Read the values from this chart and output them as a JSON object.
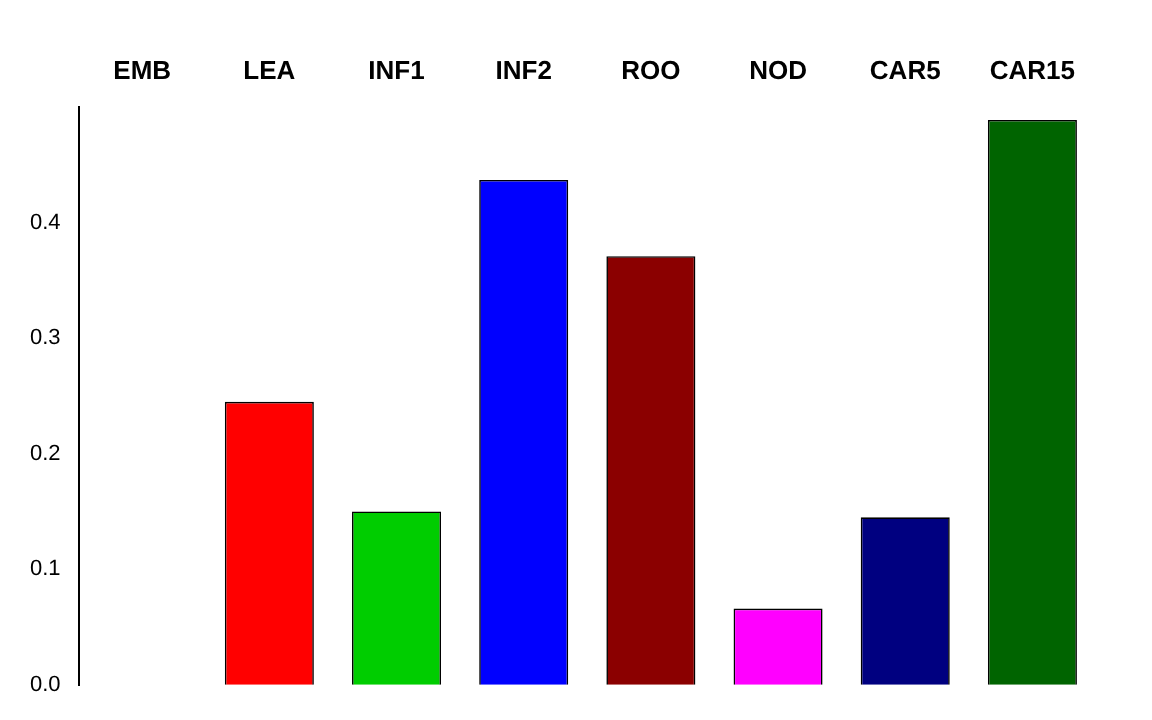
{
  "chart_data": {
    "type": "bar",
    "categories": [
      "EMB",
      "LEA",
      "INF1",
      "INF2",
      "ROO",
      "NOD",
      "CAR5",
      "CAR15"
    ],
    "values": [
      0,
      0.245,
      0.15,
      0.437,
      0.371,
      0.066,
      0.145,
      0.489
    ],
    "colors": [
      "#000000",
      "#ff0000",
      "#00cd00",
      "#0000ff",
      "#8b0000",
      "#ff00ff",
      "#000080",
      "#006400"
    ],
    "ylim": [
      0,
      0.5
    ],
    "yticks": [
      {
        "value": 0,
        "label": "0.0"
      },
      0.1,
      0.2,
      0.3,
      0.4
    ],
    "grid": false,
    "legend": false
  }
}
